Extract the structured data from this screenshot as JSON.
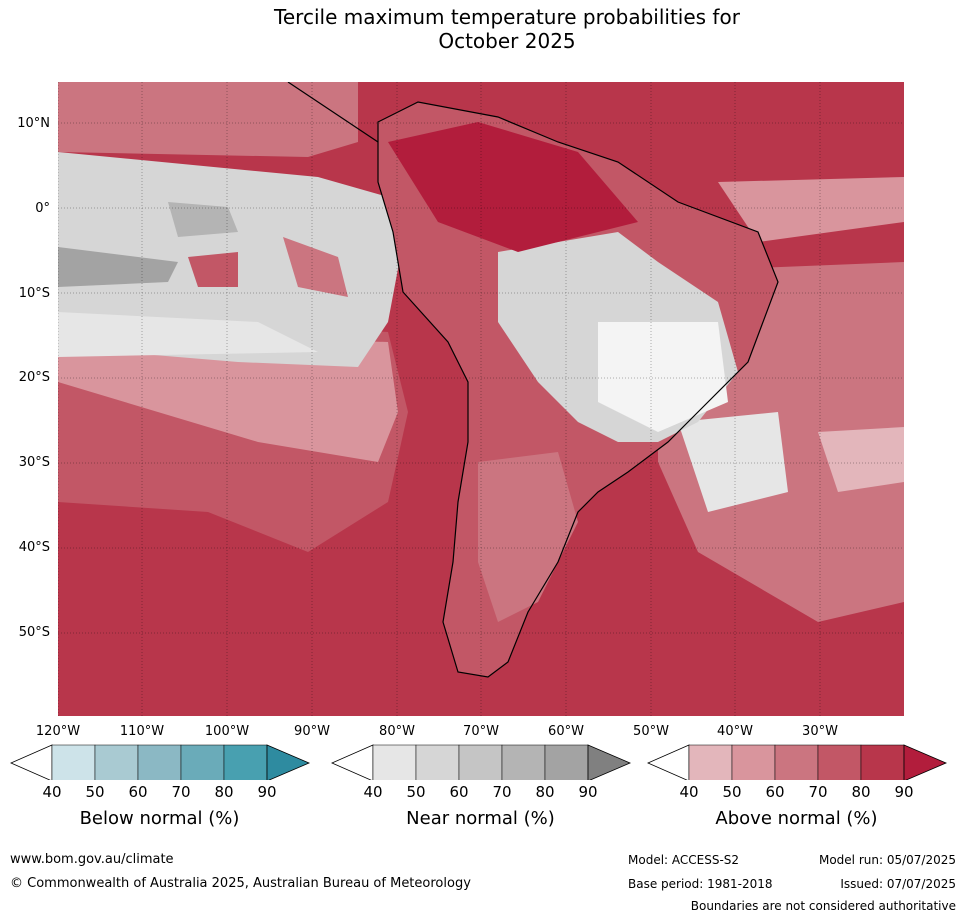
{
  "title_line1": "Tercile maximum temperature probabilities for",
  "title_line2": "October 2025",
  "lat_labels": [
    "10°N",
    "0°",
    "10°S",
    "20°S",
    "30°S",
    "40°S",
    "50°S"
  ],
  "lon_labels": [
    "120°W",
    "110°W",
    "100°W",
    "90°W",
    "80°W",
    "70°W",
    "60°W",
    "50°W",
    "40°W",
    "30°W"
  ],
  "colorbars": [
    {
      "title": "Below normal (%)",
      "ticks": [
        "40",
        "50",
        "60",
        "70",
        "80",
        "90"
      ],
      "colors": [
        "#ffffff",
        "#cde3e9",
        "#a9cad2",
        "#8bb8c4",
        "#6aabb9",
        "#48a0b0",
        "#2e8ba0"
      ]
    },
    {
      "title": "Near normal (%)",
      "ticks": [
        "40",
        "50",
        "60",
        "70",
        "80",
        "90"
      ],
      "colors": [
        "#ffffff",
        "#e6e6e6",
        "#d6d6d6",
        "#c5c5c5",
        "#b4b4b4",
        "#a3a3a3",
        "#808080"
      ]
    },
    {
      "title": "Above normal (%)",
      "ticks": [
        "40",
        "50",
        "60",
        "70",
        "80",
        "90"
      ],
      "colors": [
        "#ffffff",
        "#e3b6bb",
        "#d9959d",
        "#cb7580",
        "#c25766",
        "#b8364b",
        "#b21d3c"
      ]
    }
  ],
  "footer": {
    "website": "www.bom.gov.au/climate",
    "copyright": "© Commonwealth of Australia 2025, Australian Bureau of Meteorology",
    "model": "Model: ACCESS-S2",
    "base_period": "Base period: 1981-2018",
    "model_run": "Model run: 05/07/2025",
    "issued": "Issued: 07/07/2025",
    "disclaimer": "Boundaries are not considered authoritative"
  }
}
